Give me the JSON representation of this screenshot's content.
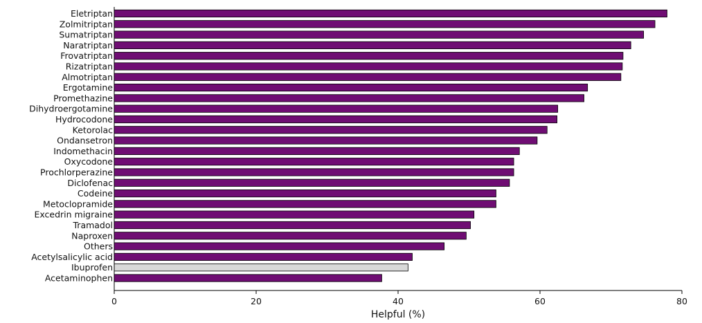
{
  "chart_data": {
    "type": "bar",
    "orientation": "horizontal",
    "title": "",
    "xlabel": "Helpful (%)",
    "ylabel": "",
    "xlim": [
      0,
      80
    ],
    "xticks": [
      "0",
      "20",
      "40",
      "60",
      "80"
    ],
    "grid": false,
    "categories": [
      "Eletriptan",
      "Zolmitriptan",
      "Sumatriptan",
      "Naratriptan",
      "Frovatriptan",
      "Rizatriptan",
      "Almotriptan",
      "Ergotamine",
      "Promethazine",
      "Dihydroergotamine",
      "Hydrocodone",
      "Ketorolac",
      "Ondansetron",
      "Indomethacin",
      "Oxycodone",
      "Prochlorperazine",
      "Diclofenac",
      "Codeine",
      "Metoclopramide",
      "Excedrin migraine",
      "Tramadol",
      "Naproxen",
      "Others",
      "Acetylsalicylic acid",
      "Ibuprofen",
      "Acetaminophen"
    ],
    "values": [
      77.9,
      76.2,
      74.6,
      72.8,
      71.7,
      71.6,
      71.4,
      66.7,
      66.2,
      62.5,
      62.4,
      61.0,
      59.6,
      57.1,
      56.3,
      56.3,
      55.7,
      53.8,
      53.8,
      50.7,
      50.2,
      49.6,
      46.5,
      42.0,
      41.4,
      37.7
    ],
    "colors": {
      "default": "#6f0d73",
      "highlight": "#d9d9d9",
      "highlight_category": "Ibuprofen"
    }
  }
}
